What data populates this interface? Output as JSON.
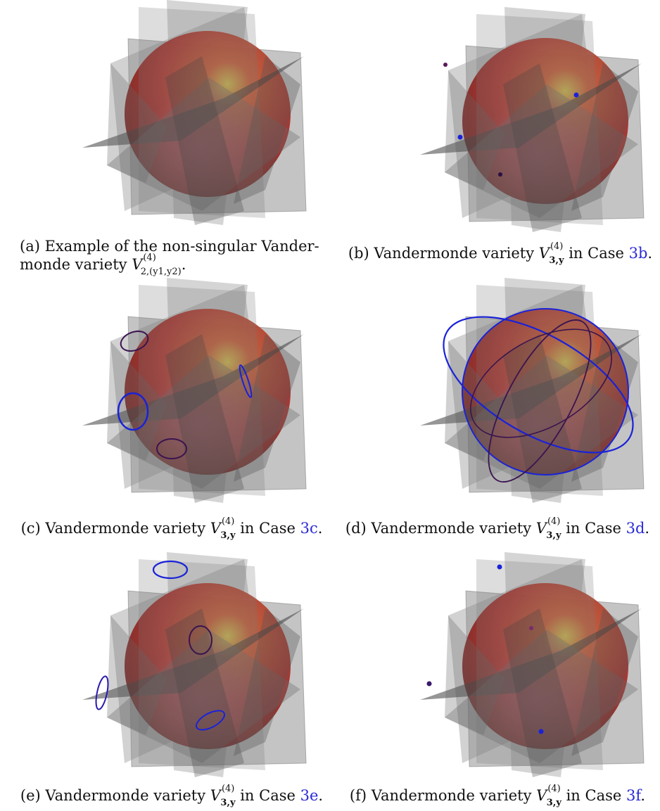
{
  "figures": [
    {
      "id": "a",
      "caption_prefix": "(a)",
      "caption_lines": [
        "Example of the non-singular Vander-",
        "monde variety"
      ],
      "math_base": "V",
      "math_sup": "(4)",
      "math_sub": "2,(y1,y2)",
      "caption_suffix": "."
    },
    {
      "id": "b",
      "caption_prefix": "(b)",
      "caption_text": "Vandermonde variety",
      "math_base": "V",
      "math_sup": "(4)",
      "math_sub": "3,y",
      "case_text": "in Case",
      "case_ref": "3b",
      "caption_suffix": "."
    },
    {
      "id": "c",
      "caption_prefix": "(c)",
      "caption_text": "Vandermonde variety",
      "math_base": "V",
      "math_sup": "(4)",
      "math_sub": "3,y",
      "case_text": "in Case",
      "case_ref": "3c",
      "caption_suffix": "."
    },
    {
      "id": "d",
      "caption_prefix": "(d)",
      "caption_text": "Vandermonde variety",
      "math_base": "V",
      "math_sup": "(4)",
      "math_sub": "3,y",
      "case_text": "in Case",
      "case_ref": "3d",
      "caption_suffix": "."
    },
    {
      "id": "e",
      "caption_prefix": "(e)",
      "caption_text": "Vandermonde variety",
      "math_base": "V",
      "math_sup": "(4)",
      "math_sub": "3,y",
      "case_text": "in Case",
      "case_ref": "3e",
      "caption_suffix": "."
    },
    {
      "id": "f",
      "caption_prefix": "(f)",
      "caption_text": "Vandermonde variety",
      "math_base": "V",
      "math_sup": "(4)",
      "math_sub": "3,y",
      "case_text": "in Case",
      "case_ref": "3f",
      "caption_suffix": "."
    }
  ],
  "colors": {
    "sphere": "#b33a2f",
    "plane": "#8a8a8a",
    "curve": "#1a22d8",
    "curve_dark": "#3a1450",
    "link": "#2a2ad6"
  }
}
